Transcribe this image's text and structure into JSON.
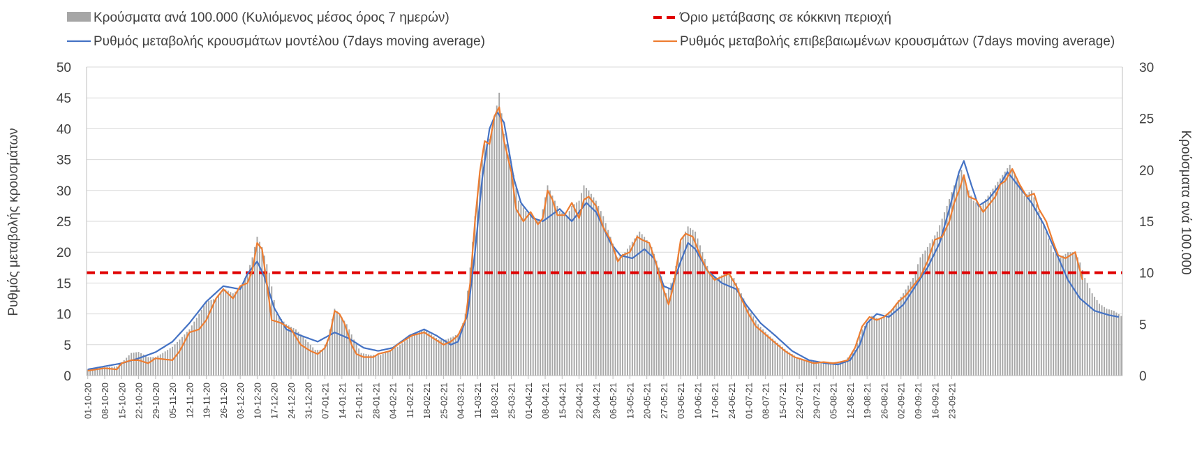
{
  "chart_data": {
    "type": "bar+line",
    "legend": {
      "bars": "Κρούσματα ανά 100.000 (Κυλιόμενος μέσος όρος 7 ημερών)",
      "threshold": "Όριο μετάβασης σε κόκκινη περιοχή",
      "model": "Ρυθμός μεταβολής κρουσμάτων μοντέλου (7days moving average)",
      "confirmed": "Ρυθμός μεταβολής επιβεβαιωμένων κρουσμάτων (7days moving average)"
    },
    "y_left": {
      "label": "Ρυθμός μεταβολής κρουσμάτων",
      "min": 0,
      "max": 50,
      "ticks": [
        "0",
        "5",
        "10",
        "15",
        "20",
        "25",
        "30",
        "35",
        "40",
        "45",
        "50"
      ]
    },
    "y_right": {
      "label": "Κρούσματα ανά 100.000",
      "min": 0,
      "max": 30,
      "ticks": [
        "0",
        "5",
        "10",
        "15",
        "20",
        "25",
        "30"
      ]
    },
    "x_ticks": [
      "01-10-20",
      "08-10-20",
      "15-10-20",
      "22-10-20",
      "29-10-20",
      "05-11-20",
      "12-11-20",
      "19-11-20",
      "26-11-20",
      "03-12-20",
      "10-12-20",
      "17-12-20",
      "24-12-20",
      "31-12-20",
      "07-01-21",
      "14-01-21",
      "21-01-21",
      "28-01-21",
      "04-02-21",
      "11-02-21",
      "18-02-21",
      "25-02-21",
      "04-03-21",
      "11-03-21",
      "18-03-21",
      "25-03-21",
      "01-04-21",
      "08-04-21",
      "15-04-21",
      "22-04-21",
      "29-04-21",
      "06-05-21",
      "13-05-21",
      "20-05-21",
      "27-05-21",
      "03-06-21",
      "10-06-21",
      "17-06-21",
      "24-06-21",
      "01-07-21",
      "08-07-21",
      "15-07-21",
      "22-07-21",
      "29-07-21",
      "05-08-21",
      "12-08-21",
      "19-08-21",
      "26-08-21",
      "02-09-21",
      "09-09-21",
      "16-09-21",
      "23-09-21"
    ],
    "threshold_right": 10,
    "colors": {
      "bars": "#a6a6a6",
      "threshold": "#e00000",
      "model": "#4472c4",
      "confirmed": "#ed7d31",
      "grid": "#d9d9d9"
    },
    "model_keypoints": [
      [
        0,
        1.0
      ],
      [
        7,
        1.5
      ],
      [
        14,
        2.0
      ],
      [
        21,
        2.8
      ],
      [
        28,
        3.8
      ],
      [
        35,
        5.5
      ],
      [
        42,
        8.5
      ],
      [
        49,
        12.0
      ],
      [
        56,
        14.5
      ],
      [
        63,
        14.0
      ],
      [
        66,
        16.5
      ],
      [
        70,
        18.5
      ],
      [
        73,
        16.0
      ],
      [
        77,
        11.0
      ],
      [
        82,
        7.5
      ],
      [
        88,
        6.5
      ],
      [
        95,
        5.5
      ],
      [
        102,
        7.0
      ],
      [
        108,
        6.0
      ],
      [
        114,
        4.5
      ],
      [
        120,
        4.0
      ],
      [
        126,
        4.5
      ],
      [
        133,
        6.5
      ],
      [
        139,
        7.5
      ],
      [
        144,
        6.5
      ],
      [
        150,
        5.0
      ],
      [
        153,
        5.5
      ],
      [
        157,
        10.0
      ],
      [
        160,
        20.0
      ],
      [
        163,
        32.0
      ],
      [
        166,
        40.0
      ],
      [
        169,
        42.8
      ],
      [
        172,
        41.0
      ],
      [
        176,
        32.0
      ],
      [
        179,
        28.0
      ],
      [
        184,
        25.5
      ],
      [
        188,
        25.0
      ],
      [
        195,
        27.0
      ],
      [
        200,
        25.0
      ],
      [
        206,
        28.0
      ],
      [
        210,
        26.5
      ],
      [
        216,
        21.5
      ],
      [
        220,
        19.5
      ],
      [
        225,
        19.0
      ],
      [
        230,
        20.5
      ],
      [
        234,
        19.0
      ],
      [
        238,
        14.5
      ],
      [
        241,
        14.0
      ],
      [
        245,
        18.5
      ],
      [
        248,
        21.5
      ],
      [
        251,
        20.5
      ],
      [
        256,
        17.0
      ],
      [
        262,
        15.0
      ],
      [
        268,
        14.0
      ],
      [
        272,
        11.5
      ],
      [
        278,
        8.5
      ],
      [
        284,
        6.5
      ],
      [
        291,
        4.0
      ],
      [
        298,
        2.5
      ],
      [
        305,
        2.0
      ],
      [
        310,
        1.8
      ],
      [
        315,
        2.5
      ],
      [
        319,
        5.0
      ],
      [
        322,
        8.5
      ],
      [
        326,
        10.0
      ],
      [
        331,
        9.5
      ],
      [
        337,
        11.5
      ],
      [
        342,
        14.5
      ],
      [
        347,
        17.5
      ],
      [
        352,
        21.5
      ],
      [
        356,
        27.0
      ],
      [
        360,
        33.0
      ],
      [
        362,
        34.8
      ],
      [
        365,
        31.0
      ],
      [
        368,
        27.5
      ],
      [
        372,
        28.5
      ],
      [
        377,
        31.0
      ],
      [
        380,
        33.0
      ],
      [
        384,
        31.0
      ],
      [
        390,
        28.0
      ],
      [
        395,
        24.5
      ],
      [
        400,
        20.0
      ],
      [
        405,
        15.5
      ],
      [
        410,
        12.5
      ],
      [
        416,
        10.5
      ],
      [
        422,
        9.8
      ],
      [
        426,
        9.5
      ]
    ],
    "confirmed_keypoints": [
      [
        0,
        0.8
      ],
      [
        7,
        1.2
      ],
      [
        12,
        1.0
      ],
      [
        14,
        2.0
      ],
      [
        18,
        2.5
      ],
      [
        21,
        2.5
      ],
      [
        25,
        2.0
      ],
      [
        28,
        2.8
      ],
      [
        35,
        2.5
      ],
      [
        38,
        4.0
      ],
      [
        42,
        7.0
      ],
      [
        46,
        7.5
      ],
      [
        49,
        9.0
      ],
      [
        53,
        12.5
      ],
      [
        56,
        14.0
      ],
      [
        60,
        12.5
      ],
      [
        63,
        14.5
      ],
      [
        66,
        15.0
      ],
      [
        68,
        17.0
      ],
      [
        70,
        21.5
      ],
      [
        72,
        20.5
      ],
      [
        74,
        15.0
      ],
      [
        76,
        9.0
      ],
      [
        80,
        8.5
      ],
      [
        84,
        7.5
      ],
      [
        88,
        5.0
      ],
      [
        92,
        4.0
      ],
      [
        95,
        3.5
      ],
      [
        98,
        4.5
      ],
      [
        100,
        6.5
      ],
      [
        102,
        10.5
      ],
      [
        104,
        10.0
      ],
      [
        106,
        8.5
      ],
      [
        109,
        5.0
      ],
      [
        111,
        3.5
      ],
      [
        114,
        3.0
      ],
      [
        118,
        3.0
      ],
      [
        120,
        3.5
      ],
      [
        125,
        4.0
      ],
      [
        128,
        5.0
      ],
      [
        134,
        6.5
      ],
      [
        139,
        7.0
      ],
      [
        143,
        6.0
      ],
      [
        147,
        5.0
      ],
      [
        150,
        5.5
      ],
      [
        153,
        6.5
      ],
      [
        156,
        9.0
      ],
      [
        158,
        15.0
      ],
      [
        160,
        25.0
      ],
      [
        162,
        33.0
      ],
      [
        164,
        38.0
      ],
      [
        166,
        37.5
      ],
      [
        168,
        42.0
      ],
      [
        170,
        43.5
      ],
      [
        172,
        38.0
      ],
      [
        175,
        33.0
      ],
      [
        177,
        27.0
      ],
      [
        180,
        25.0
      ],
      [
        183,
        26.5
      ],
      [
        186,
        24.5
      ],
      [
        188,
        25.5
      ],
      [
        190,
        30.0
      ],
      [
        192,
        28.5
      ],
      [
        194,
        26.0
      ],
      [
        197,
        26.0
      ],
      [
        200,
        28.0
      ],
      [
        203,
        25.5
      ],
      [
        205,
        28.5
      ],
      [
        207,
        29.0
      ],
      [
        210,
        27.5
      ],
      [
        213,
        24.0
      ],
      [
        216,
        22.0
      ],
      [
        219,
        18.5
      ],
      [
        221,
        19.5
      ],
      [
        224,
        20.0
      ],
      [
        227,
        22.5
      ],
      [
        229,
        22.0
      ],
      [
        232,
        21.5
      ],
      [
        235,
        18.0
      ],
      [
        237,
        15.0
      ],
      [
        240,
        11.5
      ],
      [
        242,
        14.5
      ],
      [
        245,
        22.0
      ],
      [
        247,
        23.0
      ],
      [
        250,
        22.5
      ],
      [
        253,
        19.5
      ],
      [
        256,
        17.0
      ],
      [
        259,
        15.5
      ],
      [
        262,
        16.0
      ],
      [
        265,
        16.5
      ],
      [
        268,
        14.5
      ],
      [
        270,
        12.5
      ],
      [
        273,
        10.0
      ],
      [
        276,
        8.0
      ],
      [
        279,
        7.0
      ],
      [
        282,
        6.0
      ],
      [
        285,
        5.0
      ],
      [
        288,
        4.0
      ],
      [
        292,
        3.0
      ],
      [
        296,
        2.5
      ],
      [
        300,
        2.0
      ],
      [
        304,
        2.2
      ],
      [
        308,
        2.0
      ],
      [
        311,
        2.2
      ],
      [
        314,
        2.5
      ],
      [
        317,
        4.5
      ],
      [
        320,
        8.0
      ],
      [
        323,
        9.5
      ],
      [
        326,
        9.0
      ],
      [
        329,
        9.5
      ],
      [
        332,
        10.5
      ],
      [
        335,
        12.0
      ],
      [
        338,
        13.0
      ],
      [
        341,
        14.5
      ],
      [
        344,
        16.0
      ],
      [
        347,
        18.5
      ],
      [
        350,
        22.0
      ],
      [
        353,
        22.5
      ],
      [
        356,
        25.0
      ],
      [
        358,
        28.0
      ],
      [
        360,
        30.0
      ],
      [
        362,
        32.5
      ],
      [
        364,
        29.0
      ],
      [
        367,
        28.5
      ],
      [
        370,
        26.5
      ],
      [
        372,
        27.5
      ],
      [
        375,
        29.0
      ],
      [
        377,
        31.0
      ],
      [
        379,
        31.5
      ],
      [
        382,
        33.5
      ],
      [
        385,
        31.0
      ],
      [
        388,
        29.0
      ],
      [
        391,
        29.5
      ],
      [
        393,
        27.0
      ],
      [
        396,
        25.0
      ],
      [
        399,
        21.5
      ],
      [
        401,
        19.5
      ],
      [
        404,
        19.0
      ],
      [
        406,
        19.5
      ],
      [
        408,
        20.0
      ],
      [
        411,
        15.5
      ]
    ],
    "bar_keypoints": [
      [
        0,
        0.6
      ],
      [
        7,
        0.8
      ],
      [
        12,
        0.9
      ],
      [
        15,
        1.5
      ],
      [
        18,
        2.2
      ],
      [
        21,
        2.3
      ],
      [
        25,
        1.8
      ],
      [
        28,
        1.8
      ],
      [
        31,
        2.2
      ],
      [
        35,
        2.8
      ],
      [
        38,
        3.5
      ],
      [
        42,
        4.5
      ],
      [
        46,
        6.0
      ],
      [
        49,
        7.2
      ],
      [
        53,
        7.5
      ],
      [
        56,
        8.5
      ],
      [
        60,
        8.0
      ],
      [
        63,
        8.5
      ],
      [
        66,
        10.0
      ],
      [
        68,
        11.5
      ],
      [
        70,
        13.5
      ],
      [
        72,
        12.5
      ],
      [
        75,
        10.0
      ],
      [
        78,
        6.0
      ],
      [
        82,
        5.0
      ],
      [
        86,
        4.5
      ],
      [
        90,
        3.5
      ],
      [
        94,
        2.5
      ],
      [
        97,
        2.5
      ],
      [
        99,
        3.5
      ],
      [
        102,
        6.5
      ],
      [
        104,
        6.0
      ],
      [
        107,
        5.0
      ],
      [
        110,
        3.5
      ],
      [
        113,
        2.2
      ],
      [
        117,
        2.0
      ],
      [
        121,
        2.0
      ],
      [
        125,
        2.5
      ],
      [
        128,
        2.8
      ],
      [
        132,
        3.5
      ],
      [
        136,
        4.2
      ],
      [
        139,
        4.5
      ],
      [
        142,
        4.0
      ],
      [
        145,
        3.5
      ],
      [
        148,
        3.5
      ],
      [
        151,
        3.8
      ],
      [
        154,
        4.2
      ],
      [
        156,
        6.0
      ],
      [
        158,
        10.5
      ],
      [
        160,
        15.5
      ],
      [
        162,
        19.5
      ],
      [
        164,
        22.5
      ],
      [
        166,
        23.0
      ],
      [
        168,
        25.0
      ],
      [
        170,
        27.5
      ],
      [
        172,
        23.5
      ],
      [
        174,
        21.5
      ],
      [
        176,
        19.5
      ],
      [
        178,
        17.0
      ],
      [
        181,
        16.0
      ],
      [
        184,
        15.5
      ],
      [
        187,
        15.0
      ],
      [
        190,
        18.5
      ],
      [
        192,
        17.5
      ],
      [
        195,
        16.0
      ],
      [
        198,
        15.5
      ],
      [
        200,
        16.5
      ],
      [
        203,
        17.0
      ],
      [
        205,
        18.5
      ],
      [
        207,
        18.0
      ],
      [
        210,
        17.0
      ],
      [
        213,
        15.5
      ],
      [
        216,
        13.5
      ],
      [
        219,
        11.5
      ],
      [
        222,
        12.0
      ],
      [
        225,
        13.0
      ],
      [
        228,
        14.0
      ],
      [
        230,
        13.5
      ],
      [
        233,
        12.5
      ],
      [
        236,
        10.5
      ],
      [
        239,
        8.0
      ],
      [
        242,
        9.5
      ],
      [
        245,
        13.0
      ],
      [
        248,
        14.5
      ],
      [
        251,
        14.0
      ],
      [
        254,
        12.0
      ],
      [
        257,
        10.0
      ],
      [
        260,
        9.5
      ],
      [
        264,
        10.0
      ],
      [
        267,
        9.5
      ],
      [
        270,
        8.0
      ],
      [
        273,
        6.5
      ],
      [
        277,
        5.0
      ],
      [
        281,
        4.0
      ],
      [
        285,
        3.2
      ],
      [
        289,
        2.4
      ],
      [
        293,
        1.8
      ],
      [
        297,
        1.5
      ],
      [
        301,
        1.4
      ],
      [
        305,
        1.3
      ],
      [
        309,
        1.3
      ],
      [
        313,
        1.5
      ],
      [
        317,
        2.5
      ],
      [
        320,
        4.5
      ],
      [
        324,
        5.8
      ],
      [
        327,
        5.5
      ],
      [
        330,
        5.8
      ],
      [
        334,
        7.0
      ],
      [
        337,
        8.0
      ],
      [
        341,
        9.5
      ],
      [
        344,
        11.5
      ],
      [
        347,
        12.5
      ],
      [
        351,
        14.0
      ],
      [
        355,
        16.5
      ],
      [
        358,
        18.5
      ],
      [
        361,
        20.0
      ],
      [
        363,
        18.5
      ],
      [
        366,
        17.0
      ],
      [
        369,
        16.5
      ],
      [
        372,
        17.5
      ],
      [
        375,
        18.5
      ],
      [
        378,
        19.5
      ],
      [
        381,
        20.5
      ],
      [
        384,
        19.0
      ],
      [
        387,
        17.5
      ],
      [
        390,
        18.0
      ],
      [
        393,
        16.0
      ],
      [
        396,
        14.0
      ],
      [
        399,
        12.0
      ],
      [
        402,
        11.5
      ],
      [
        405,
        12.0
      ],
      [
        408,
        12.0
      ],
      [
        410,
        11.0
      ],
      [
        412,
        9.5
      ],
      [
        415,
        8.0
      ],
      [
        418,
        7.0
      ],
      [
        421,
        6.5
      ],
      [
        424,
        6.3
      ],
      [
        427,
        5.8
      ]
    ]
  }
}
